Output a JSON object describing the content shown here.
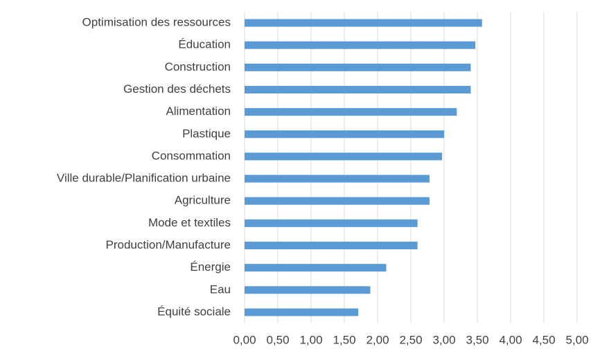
{
  "chart_data": {
    "type": "barh",
    "categories": [
      "Optimisation des ressources",
      "Éducation",
      "Construction",
      "Gestion des déchets",
      "Alimentation",
      "Plastique",
      "Consommation",
      "Ville durable/Planification urbaine",
      "Agriculture",
      "Mode et textiles",
      "Production/Manufacture",
      "Énergie",
      "Eau",
      "Équité sociale"
    ],
    "values": [
      3.57,
      3.47,
      3.4,
      3.4,
      3.19,
      3.0,
      2.97,
      2.78,
      2.78,
      2.6,
      2.6,
      2.13,
      1.89,
      1.71
    ],
    "color": "#5b9bd5",
    "xlim": [
      0,
      5
    ],
    "xticks": [
      {
        "value": 0,
        "label": "0,00"
      },
      {
        "value": 0.5,
        "label": "0,50"
      },
      {
        "value": 1,
        "label": "1,00"
      },
      {
        "value": 1.5,
        "label": "1,50"
      },
      {
        "value": 2,
        "label": "2,00"
      },
      {
        "value": 2.5,
        "label": "2,50"
      },
      {
        "value": 3,
        "label": "3,00"
      },
      {
        "value": 3.5,
        "label": "3,50"
      },
      {
        "value": 4,
        "label": "4,00"
      },
      {
        "value": 4.5,
        "label": "4,50"
      },
      {
        "value": 5,
        "label": "5,00"
      }
    ],
    "grid": true
  }
}
